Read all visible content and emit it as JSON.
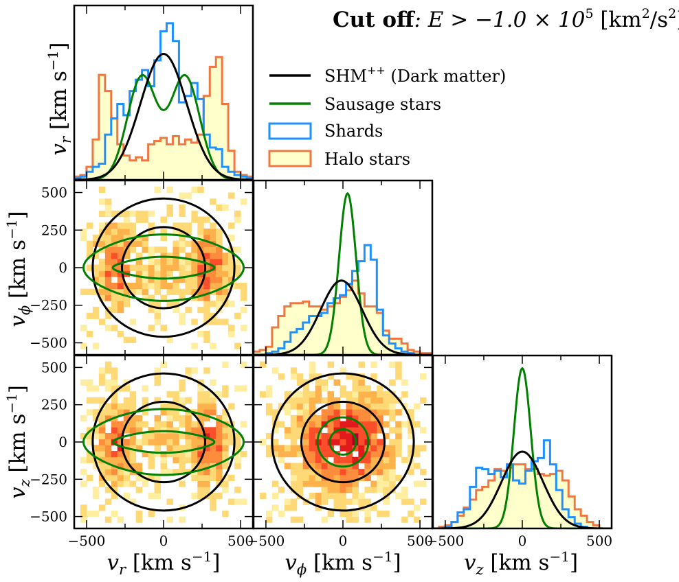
{
  "title": {
    "bold": "Cut off",
    "rest": ": E > −1.0 × 10",
    "exp": "5",
    "units": " [km",
    "units_exp": "2",
    "units_tail": "/s",
    "units_exp2": "2",
    "units_end": "]"
  },
  "legend": [
    {
      "label": "SHM",
      "sup": "++",
      "tail": " (Dark matter)",
      "color": "#000000",
      "kind": "line"
    },
    {
      "label": "Sausage stars",
      "sup": "",
      "tail": "",
      "color": "#008000",
      "kind": "line"
    },
    {
      "label": "Shards",
      "sup": "",
      "tail": "",
      "color": "#1e90ff",
      "kind": "box"
    },
    {
      "label": "Halo stars",
      "sup": "",
      "tail": "",
      "color": "#f07840",
      "kind": "filledbox",
      "fill": "#ffffcc"
    }
  ],
  "axis_labels": {
    "vr": {
      "sym": "v",
      "sub": "r",
      "unit": " [km s",
      "exp": "−1",
      "end": "]"
    },
    "vphi": {
      "sym": "v",
      "sub": "ϕ",
      "unit": " [km s",
      "exp": "−1",
      "end": "]"
    },
    "vz": {
      "sym": "v",
      "sub": "z",
      "unit": " [km s",
      "exp": "−1",
      "end": "]"
    }
  },
  "ticks": {
    "x": [
      "−500",
      "0",
      "500"
    ],
    "y": [
      "500",
      "250",
      "0",
      "−250",
      "−500"
    ]
  },
  "colors": {
    "dark_matter": "#000000",
    "sausage": "#008000",
    "shards": "#1e90ff",
    "halo_edge": "#f07840",
    "halo_fill": "#ffffcc",
    "heat": [
      "#ffeda0",
      "#fed976",
      "#feb24c",
      "#fd8d3c",
      "#fc4e2a",
      "#e31a1c",
      "#b10026"
    ]
  },
  "chart_data": {
    "type": "corner",
    "axis_range": [
      -580,
      580
    ],
    "diagonal": {
      "vr": {
        "bin_edges": [
          -580,
          -540,
          -500,
          -460,
          -420,
          -380,
          -340,
          -300,
          -260,
          -220,
          -180,
          -140,
          -100,
          -60,
          -20,
          20,
          60,
          100,
          140,
          180,
          220,
          260,
          300,
          340,
          380,
          420,
          460,
          500,
          540,
          580
        ],
        "halo": [
          0.02,
          0.03,
          0.08,
          0.25,
          0.65,
          0.55,
          0.38,
          0.22,
          0.15,
          0.12,
          0.14,
          0.12,
          0.22,
          0.24,
          0.26,
          0.22,
          0.27,
          0.22,
          0.25,
          0.23,
          0.28,
          0.52,
          0.7,
          0.76,
          0.47,
          0.18,
          0.05,
          0.03,
          0.02
        ],
        "shards": [
          0.01,
          0.02,
          0.05,
          0.08,
          0.1,
          0.28,
          0.38,
          0.47,
          0.4,
          0.55,
          0.62,
          0.68,
          0.58,
          0.74,
          0.92,
          0.97,
          0.86,
          0.48,
          0.52,
          0.6,
          0.5,
          0.28,
          0.2,
          0.19,
          0.08,
          0.05,
          0.03,
          0.02,
          0.01
        ],
        "dm_peak": 0.78,
        "dm_sigma": 150,
        "sausage_peak": 0.64,
        "sausage_mu": 140,
        "sausage_sigma": 95
      },
      "vphi": {
        "bin_edges": [
          -580,
          -540,
          -500,
          -460,
          -420,
          -380,
          -340,
          -300,
          -260,
          -220,
          -180,
          -140,
          -100,
          -60,
          -20,
          20,
          60,
          100,
          140,
          180,
          220,
          260,
          300,
          340,
          380,
          420,
          460,
          500,
          540,
          580
        ],
        "halo": [
          0.02,
          0.03,
          0.05,
          0.17,
          0.24,
          0.3,
          0.32,
          0.32,
          0.33,
          0.3,
          0.3,
          0.28,
          0.3,
          0.32,
          0.36,
          0.4,
          0.46,
          0.38,
          0.3,
          0.3,
          0.26,
          0.15,
          0.1,
          0.1,
          0.07,
          0.03,
          0.02,
          0.01,
          0.01
        ],
        "shards": [
          0.0,
          0.0,
          0.01,
          0.02,
          0.04,
          0.08,
          0.14,
          0.16,
          0.2,
          0.24,
          0.24,
          0.26,
          0.32,
          0.35,
          0.37,
          0.44,
          0.52,
          0.58,
          0.68,
          0.59,
          0.28,
          0.12,
          0.07,
          0.04,
          0.02,
          0.01,
          0.0,
          0.0,
          0.0
        ],
        "dm_peak": 0.46,
        "dm_mu": -10,
        "dm_sigma": 135,
        "sausage_peak": 1.0,
        "sausage_mu": 30,
        "sausage_sigma": 55
      },
      "vz": {
        "bin_edges": [
          -580,
          -540,
          -500,
          -460,
          -420,
          -380,
          -340,
          -300,
          -260,
          -220,
          -180,
          -140,
          -100,
          -60,
          -20,
          20,
          60,
          100,
          140,
          180,
          220,
          260,
          300,
          340,
          380,
          420,
          460,
          500,
          540,
          580
        ],
        "halo": [
          0.0,
          0.01,
          0.02,
          0.04,
          0.08,
          0.13,
          0.18,
          0.24,
          0.26,
          0.3,
          0.37,
          0.36,
          0.38,
          0.4,
          0.4,
          0.37,
          0.37,
          0.34,
          0.33,
          0.34,
          0.36,
          0.3,
          0.2,
          0.12,
          0.08,
          0.04,
          0.02,
          0.0,
          0.0
        ],
        "shards": [
          0.0,
          0.0,
          0.01,
          0.04,
          0.1,
          0.12,
          0.26,
          0.38,
          0.37,
          0.34,
          0.36,
          0.32,
          0.4,
          0.3,
          0.28,
          0.36,
          0.42,
          0.44,
          0.55,
          0.4,
          0.24,
          0.12,
          0.07,
          0.03,
          0.01,
          0.0,
          0.0,
          0.0,
          0.0
        ],
        "dm_peak": 0.48,
        "dm_sigma": 135,
        "sausage_peak": 1.0,
        "sausage_sigma": 55
      }
    },
    "contours": {
      "vphi_vr": {
        "dark_matter_radii": [
          270,
          460
        ],
        "sausage": [
          {
            "a": 330,
            "b": 60
          },
          {
            "a": 520,
            "b": 200
          }
        ]
      },
      "vz_vr": {
        "dark_matter_radii": [
          270,
          460
        ],
        "sausage": [
          {
            "a": 330,
            "b": 60
          },
          {
            "a": 520,
            "b": 200
          }
        ]
      },
      "vz_vphi": {
        "dark_matter_radii": [
          270,
          460
        ],
        "sausage_radii": [
          85,
          165
        ]
      }
    }
  }
}
